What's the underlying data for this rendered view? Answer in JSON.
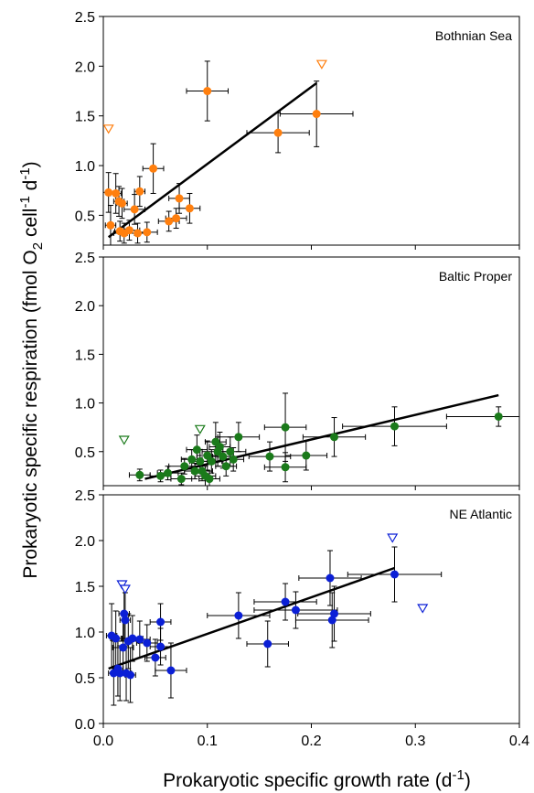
{
  "chart_data": {
    "type": "scatter",
    "xlabel": "Prokaryotic specific growth rate (d",
    "xlabel_sup": "-1",
    "xlabel_end": ")",
    "ylabel": {
      "pre": "Prokaryotic specific respiration (fmol O",
      "sub": "2",
      "mid1": " cell",
      "sup1": "-1",
      "mid2": " d",
      "sup2": "-1",
      "post": ")"
    },
    "xlim": [
      0.0,
      0.4
    ],
    "xticks": [
      "0.0",
      "0.1",
      "0.2",
      "0.3",
      "0.4"
    ],
    "ylim": [
      0.0,
      2.5
    ],
    "grid": false,
    "panels": [
      {
        "label": "Bothnian Sea",
        "color": "#ff7f0e",
        "yticks": [
          "0.5",
          "1.0",
          "1.5",
          "2.0",
          "2.5"
        ],
        "ytick_values": [
          0.5,
          1.0,
          1.5,
          2.0,
          2.5
        ],
        "ylim": [
          0.2,
          2.5
        ],
        "regression": [
          [
            0.005,
            0.28
          ],
          [
            0.205,
            1.83
          ]
        ],
        "points": [
          {
            "x": 0.005,
            "y": 0.73,
            "xerr": 0.01,
            "yerr": 0.2
          },
          {
            "x": 0.007,
            "y": 0.4,
            "xerr": 0.005,
            "yerr": 0.2
          },
          {
            "x": 0.012,
            "y": 0.72,
            "xerr": 0.005,
            "yerr": 0.2
          },
          {
            "x": 0.015,
            "y": 0.64,
            "xerr": 0.005,
            "yerr": 0.15
          },
          {
            "x": 0.016,
            "y": 0.34,
            "xerr": 0.005,
            "yerr": 0.1
          },
          {
            "x": 0.018,
            "y": 0.62,
            "xerr": 0.005,
            "yerr": 0.15
          },
          {
            "x": 0.02,
            "y": 0.32,
            "xerr": 0.01,
            "yerr": 0.1
          },
          {
            "x": 0.025,
            "y": 0.35,
            "xerr": 0.01,
            "yerr": 0.1
          },
          {
            "x": 0.03,
            "y": 0.56,
            "xerr": 0.01,
            "yerr": 0.15
          },
          {
            "x": 0.033,
            "y": 0.32,
            "xerr": 0.01,
            "yerr": 0.1
          },
          {
            "x": 0.035,
            "y": 0.74,
            "xerr": 0.005,
            "yerr": 0.15
          },
          {
            "x": 0.042,
            "y": 0.33,
            "xerr": 0.01,
            "yerr": 0.1
          },
          {
            "x": 0.048,
            "y": 0.97,
            "xerr": 0.01,
            "yerr": 0.25
          },
          {
            "x": 0.063,
            "y": 0.44,
            "xerr": 0.01,
            "yerr": 0.1
          },
          {
            "x": 0.07,
            "y": 0.47,
            "xerr": 0.01,
            "yerr": 0.1
          },
          {
            "x": 0.073,
            "y": 0.67,
            "xerr": 0.01,
            "yerr": 0.15
          },
          {
            "x": 0.083,
            "y": 0.57,
            "xerr": 0.01,
            "yerr": 0.15
          },
          {
            "x": 0.1,
            "y": 1.75,
            "xerr": 0.02,
            "yerr": 0.3
          },
          {
            "x": 0.168,
            "y": 1.33,
            "xerr": 0.03,
            "yerr": 0.2
          },
          {
            "x": 0.205,
            "y": 1.52,
            "xerr": 0.035,
            "yerr": 0.33
          }
        ],
        "outliers": [
          {
            "x": 0.005,
            "y": 1.37
          },
          {
            "x": 0.21,
            "y": 2.02
          }
        ]
      },
      {
        "label": "Baltic Proper",
        "color": "#1a7a1a",
        "yticks": [
          "0.5",
          "1.0",
          "1.5",
          "2.0",
          "2.5"
        ],
        "ytick_values": [
          0.5,
          1.0,
          1.5,
          2.0,
          2.5
        ],
        "ylim": [
          0.15,
          2.5
        ],
        "regression": [
          [
            0.04,
            0.22
          ],
          [
            0.38,
            1.08
          ]
        ],
        "points": [
          {
            "x": 0.035,
            "y": 0.26,
            "xerr": 0.01,
            "yerr": 0.06
          },
          {
            "x": 0.055,
            "y": 0.25,
            "xerr": 0.01,
            "yerr": 0.06
          },
          {
            "x": 0.062,
            "y": 0.28,
            "xerr": 0.01,
            "yerr": 0.07
          },
          {
            "x": 0.075,
            "y": 0.22,
            "xerr": 0.01,
            "yerr": 0.06
          },
          {
            "x": 0.078,
            "y": 0.35,
            "xerr": 0.015,
            "yerr": 0.08
          },
          {
            "x": 0.085,
            "y": 0.42,
            "xerr": 0.01,
            "yerr": 0.1
          },
          {
            "x": 0.088,
            "y": 0.3,
            "xerr": 0.01,
            "yerr": 0.08
          },
          {
            "x": 0.09,
            "y": 0.52,
            "xerr": 0.01,
            "yerr": 0.15
          },
          {
            "x": 0.093,
            "y": 0.4,
            "xerr": 0.01,
            "yerr": 0.12
          },
          {
            "x": 0.095,
            "y": 0.3,
            "xerr": 0.01,
            "yerr": 0.1
          },
          {
            "x": 0.098,
            "y": 0.25,
            "xerr": 0.01,
            "yerr": 0.1
          },
          {
            "x": 0.1,
            "y": 0.46,
            "xerr": 0.01,
            "yerr": 0.15
          },
          {
            "x": 0.102,
            "y": 0.22,
            "xerr": 0.01,
            "yerr": 0.08
          },
          {
            "x": 0.104,
            "y": 0.4,
            "xerr": 0.01,
            "yerr": 0.12
          },
          {
            "x": 0.108,
            "y": 0.6,
            "xerr": 0.01,
            "yerr": 0.2
          },
          {
            "x": 0.11,
            "y": 0.5,
            "xerr": 0.015,
            "yerr": 0.15
          },
          {
            "x": 0.112,
            "y": 0.55,
            "xerr": 0.01,
            "yerr": 0.15
          },
          {
            "x": 0.115,
            "y": 0.45,
            "xerr": 0.01,
            "yerr": 0.12
          },
          {
            "x": 0.118,
            "y": 0.35,
            "xerr": 0.01,
            "yerr": 0.1
          },
          {
            "x": 0.122,
            "y": 0.5,
            "xerr": 0.015,
            "yerr": 0.15
          },
          {
            "x": 0.125,
            "y": 0.42,
            "xerr": 0.01,
            "yerr": 0.12
          },
          {
            "x": 0.13,
            "y": 0.65,
            "xerr": 0.02,
            "yerr": 0.15
          },
          {
            "x": 0.16,
            "y": 0.45,
            "xerr": 0.02,
            "yerr": 0.15
          },
          {
            "x": 0.175,
            "y": 0.75,
            "xerr": 0.02,
            "yerr": 0.35
          },
          {
            "x": 0.175,
            "y": 0.34,
            "xerr": 0.02,
            "yerr": 0.15
          },
          {
            "x": 0.195,
            "y": 0.46,
            "xerr": 0.02,
            "yerr": 0.15
          },
          {
            "x": 0.222,
            "y": 0.65,
            "xerr": 0.03,
            "yerr": 0.2
          },
          {
            "x": 0.28,
            "y": 0.76,
            "xerr": 0.05,
            "yerr": 0.2
          },
          {
            "x": 0.38,
            "y": 0.86,
            "xerr": 0.05,
            "yerr": 0.1
          }
        ],
        "outliers": [
          {
            "x": 0.02,
            "y": 0.62
          },
          {
            "x": 0.093,
            "y": 0.73
          }
        ]
      },
      {
        "label": "NE Atlantic",
        "color": "#0b1fd6",
        "yticks": [
          "0.0",
          "0.5",
          "1.0",
          "1.5",
          "2.0",
          "2.5"
        ],
        "ytick_values": [
          0.0,
          0.5,
          1.0,
          1.5,
          2.0,
          2.5
        ],
        "ylim": [
          0.0,
          2.5
        ],
        "regression": [
          [
            0.005,
            0.6
          ],
          [
            0.28,
            1.7
          ]
        ],
        "points": [
          {
            "x": 0.008,
            "y": 0.96,
            "xerr": 0.005,
            "yerr": 0.35
          },
          {
            "x": 0.01,
            "y": 0.55,
            "xerr": 0.005,
            "yerr": 0.35
          },
          {
            "x": 0.012,
            "y": 0.93,
            "xerr": 0.005,
            "yerr": 0.3
          },
          {
            "x": 0.014,
            "y": 0.6,
            "xerr": 0.005,
            "yerr": 0.3
          },
          {
            "x": 0.016,
            "y": 0.55,
            "xerr": 0.005,
            "yerr": 0.3
          },
          {
            "x": 0.019,
            "y": 0.83,
            "xerr": 0.01,
            "yerr": 0.3
          },
          {
            "x": 0.02,
            "y": 1.2,
            "xerr": 0.005,
            "yerr": 0.3
          },
          {
            "x": 0.021,
            "y": 1.13,
            "xerr": 0.005,
            "yerr": 0.3
          },
          {
            "x": 0.022,
            "y": 0.55,
            "xerr": 0.005,
            "yerr": 0.3
          },
          {
            "x": 0.024,
            "y": 0.9,
            "xerr": 0.01,
            "yerr": 0.3
          },
          {
            "x": 0.026,
            "y": 0.53,
            "xerr": 0.005,
            "yerr": 0.3
          },
          {
            "x": 0.028,
            "y": 0.93,
            "xerr": 0.01,
            "yerr": 0.25
          },
          {
            "x": 0.035,
            "y": 0.92,
            "xerr": 0.01,
            "yerr": 0.2
          },
          {
            "x": 0.042,
            "y": 0.88,
            "xerr": 0.01,
            "yerr": 0.2
          },
          {
            "x": 0.05,
            "y": 0.72,
            "xerr": 0.01,
            "yerr": 0.2
          },
          {
            "x": 0.055,
            "y": 1.11,
            "xerr": 0.01,
            "yerr": 0.2
          },
          {
            "x": 0.055,
            "y": 0.84,
            "xerr": 0.01,
            "yerr": 0.2
          },
          {
            "x": 0.065,
            "y": 0.58,
            "xerr": 0.015,
            "yerr": 0.3
          },
          {
            "x": 0.13,
            "y": 1.18,
            "xerr": 0.03,
            "yerr": 0.25
          },
          {
            "x": 0.158,
            "y": 0.87,
            "xerr": 0.02,
            "yerr": 0.25
          },
          {
            "x": 0.175,
            "y": 1.33,
            "xerr": 0.03,
            "yerr": 0.2
          },
          {
            "x": 0.185,
            "y": 1.24,
            "xerr": 0.04,
            "yerr": 0.2
          },
          {
            "x": 0.218,
            "y": 1.59,
            "xerr": 0.03,
            "yerr": 0.3
          },
          {
            "x": 0.22,
            "y": 1.13,
            "xerr": 0.035,
            "yerr": 0.3
          },
          {
            "x": 0.222,
            "y": 1.2,
            "xerr": 0.035,
            "yerr": 0.3
          },
          {
            "x": 0.28,
            "y": 1.63,
            "xerr": 0.045,
            "yerr": 0.3
          }
        ],
        "outliers": [
          {
            "x": 0.018,
            "y": 1.52
          },
          {
            "x": 0.021,
            "y": 1.47
          },
          {
            "x": 0.278,
            "y": 2.03
          },
          {
            "x": 0.307,
            "y": 1.26
          }
        ]
      }
    ]
  }
}
